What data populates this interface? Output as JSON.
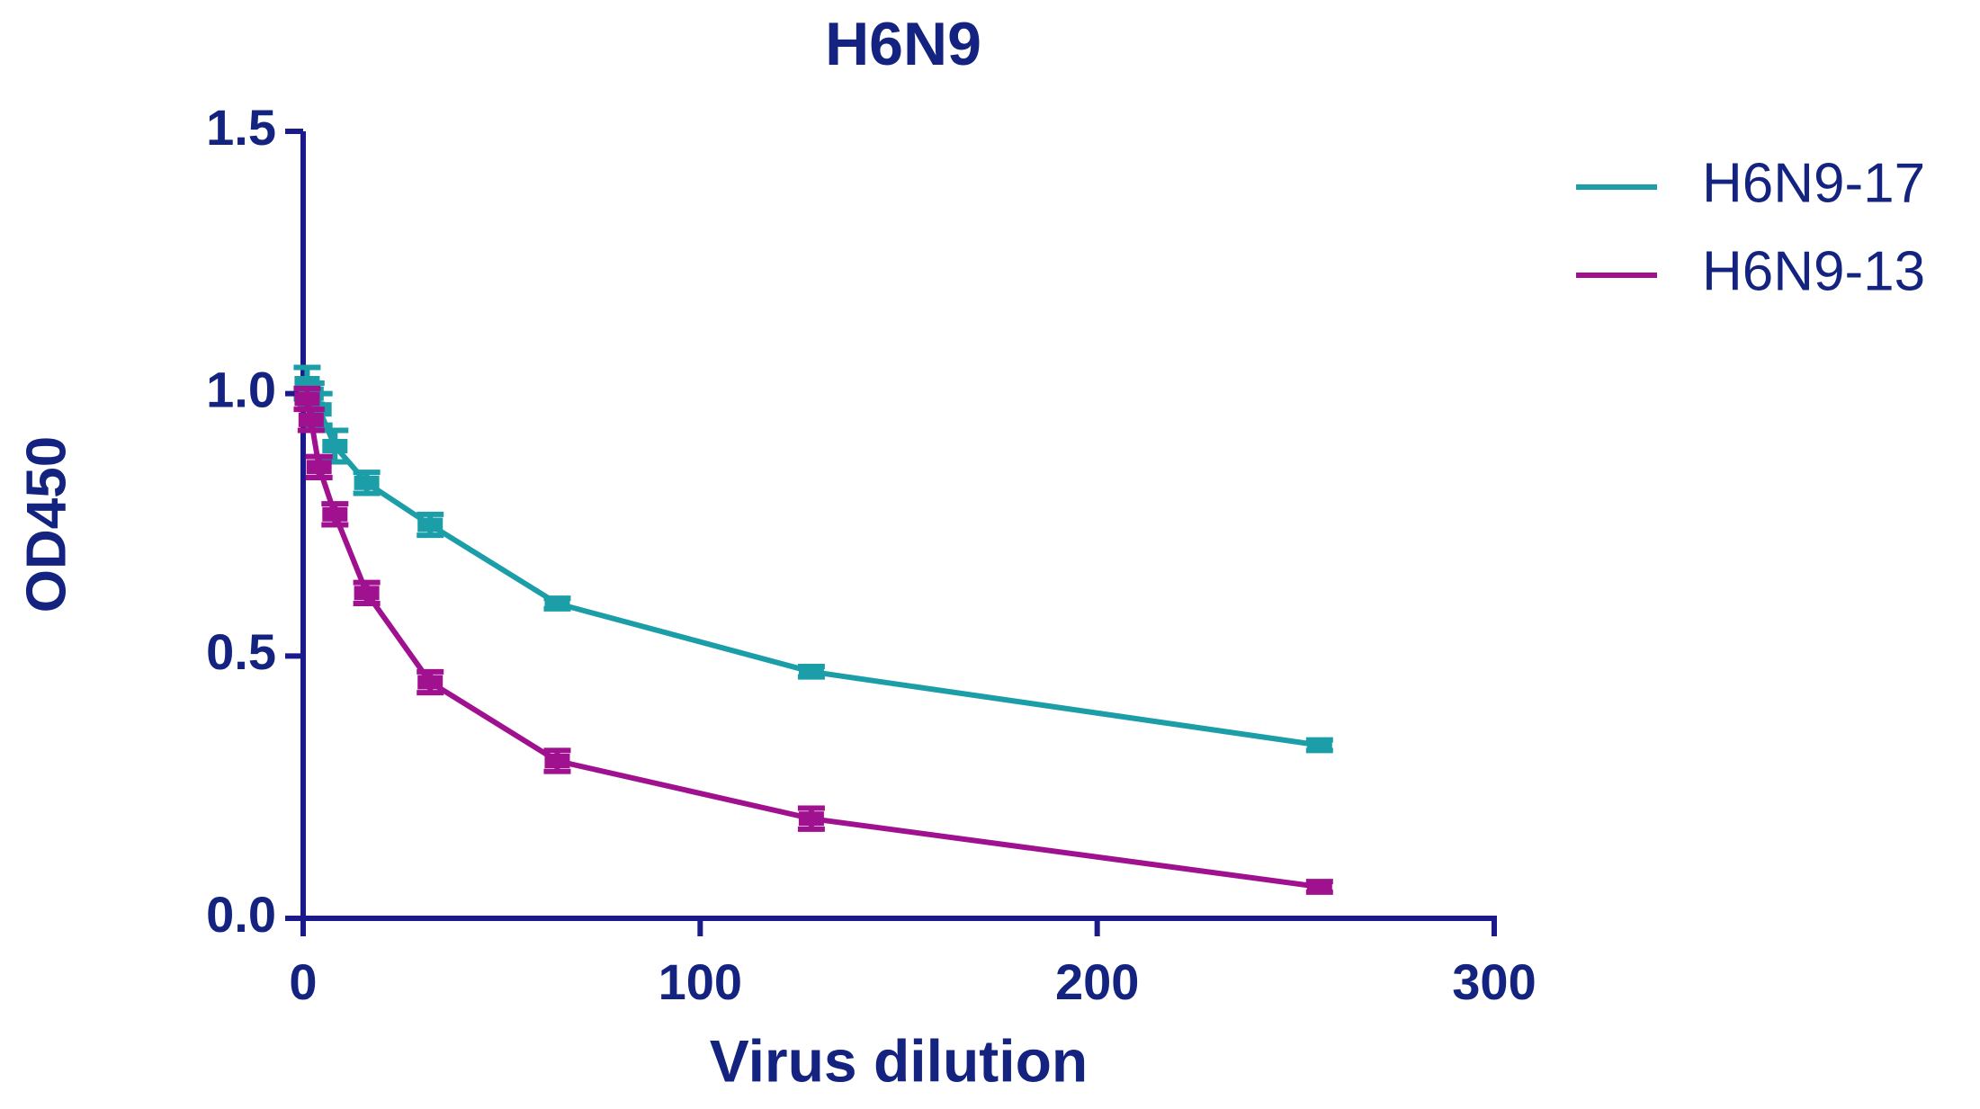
{
  "chart_data": {
    "type": "line",
    "title": "H6N9",
    "x_label": "Virus dilution",
    "y_label": "OD450",
    "x": [
      1,
      2,
      4,
      8,
      16,
      32,
      64,
      128,
      256
    ],
    "series": [
      {
        "name": "H6N9-17",
        "color": "#1b9ea8",
        "values": [
          1.02,
          1.0,
          0.97,
          0.9,
          0.83,
          0.75,
          0.6,
          0.47,
          0.33
        ],
        "errors": [
          0.03,
          0.02,
          0.03,
          0.03,
          0.02,
          0.02,
          0.01,
          0.01,
          0.01
        ]
      },
      {
        "name": "H6N9-13",
        "color": "#a0118f",
        "values": [
          0.99,
          0.95,
          0.86,
          0.77,
          0.62,
          0.45,
          0.3,
          0.19,
          0.06
        ],
        "errors": [
          0.02,
          0.02,
          0.02,
          0.02,
          0.02,
          0.02,
          0.02,
          0.02,
          0.01
        ]
      }
    ],
    "xlim": [
      0,
      300
    ],
    "xticks": [
      0,
      100,
      200,
      300
    ],
    "ylim": [
      0,
      1.5
    ],
    "yticks": [
      {
        "value": 0,
        "label": "0.0"
      },
      0.5,
      {
        "value": 1,
        "label": "1.0"
      },
      1.5
    ],
    "legend": "top-right"
  }
}
